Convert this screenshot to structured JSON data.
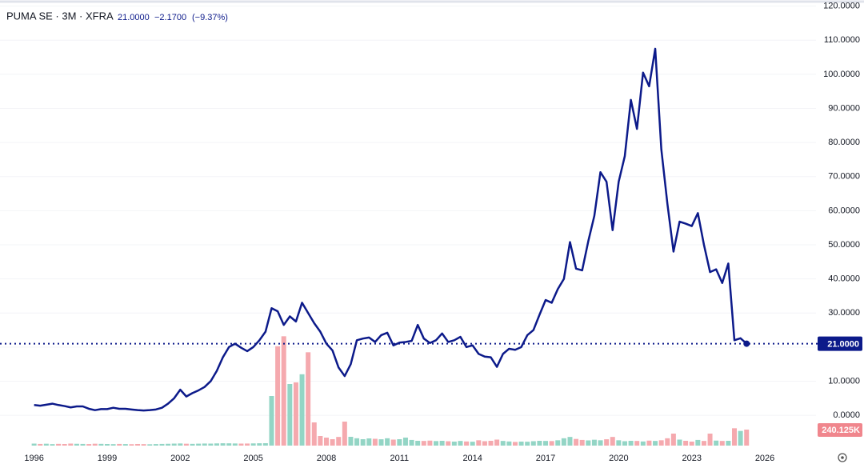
{
  "chart_data": {
    "type": "line",
    "title": "PUMA SE · 3M · XFRA",
    "header_values": [
      "21.0000",
      "−2.1700",
      "(−9.37%)"
    ],
    "x": [
      1996,
      1996.25,
      1996.5,
      1996.75,
      1997,
      1997.25,
      1997.5,
      1997.75,
      1998,
      1998.25,
      1998.5,
      1998.75,
      1999,
      1999.25,
      1999.5,
      1999.75,
      2000,
      2000.25,
      2000.5,
      2000.75,
      2001,
      2001.25,
      2001.5,
      2001.75,
      2002,
      2002.25,
      2002.5,
      2002.75,
      2003,
      2003.25,
      2003.5,
      2003.75,
      2004,
      2004.25,
      2004.5,
      2004.75,
      2005,
      2005.25,
      2005.5,
      2005.75,
      2006,
      2006.25,
      2006.5,
      2006.75,
      2007,
      2007.25,
      2007.5,
      2007.75,
      2008,
      2008.25,
      2008.5,
      2008.75,
      2009,
      2009.25,
      2009.5,
      2009.75,
      2010,
      2010.25,
      2010.5,
      2010.75,
      2011,
      2011.25,
      2011.5,
      2011.75,
      2012,
      2012.25,
      2012.5,
      2012.75,
      2013,
      2013.25,
      2013.5,
      2013.75,
      2014,
      2014.25,
      2014.5,
      2014.75,
      2015,
      2015.25,
      2015.5,
      2015.75,
      2016,
      2016.25,
      2016.5,
      2016.75,
      2017,
      2017.25,
      2017.5,
      2017.75,
      2018,
      2018.25,
      2018.5,
      2018.75,
      2019,
      2019.25,
      2019.5,
      2019.75,
      2020,
      2020.25,
      2020.5,
      2020.75,
      2021,
      2021.25,
      2021.5,
      2021.75,
      2022,
      2022.25,
      2022.5,
      2022.75,
      2023,
      2023.25,
      2023.5,
      2023.75,
      2024,
      2024.25,
      2024.5,
      2024.75,
      2025,
      2025.25
    ],
    "series": [
      {
        "name": "PUMA SE",
        "color": "#0c1a8a",
        "values": [
          3.0,
          2.8,
          3.1,
          3.4,
          3.0,
          2.7,
          2.3,
          2.6,
          2.6,
          1.9,
          1.5,
          1.8,
          1.8,
          2.2,
          1.9,
          1.9,
          1.7,
          1.5,
          1.4,
          1.5,
          1.7,
          2.2,
          3.4,
          5.0,
          7.5,
          5.5,
          6.5,
          7.3,
          8.3,
          10.0,
          13.0,
          17.0,
          20.0,
          21.0,
          19.8,
          18.8,
          20.0,
          22.0,
          24.5,
          31.4,
          30.5,
          26.5,
          29.0,
          27.5,
          33.0,
          30.0,
          27.0,
          24.5,
          21.0,
          19.0,
          14.0,
          11.5,
          15.0,
          22.0,
          22.5,
          22.8,
          21.5,
          23.5,
          24.2,
          20.5,
          21.3,
          21.5,
          21.8,
          26.5,
          22.5,
          21.2,
          22.0,
          24.0,
          21.5,
          22.0,
          23.0,
          20.0,
          20.5,
          18.0,
          17.2,
          17.0,
          14.2,
          18.0,
          19.5,
          19.2,
          20.0,
          23.5,
          25.0,
          29.5,
          33.8,
          33.0,
          37.0,
          40.0,
          50.8,
          43.0,
          42.5,
          51.0,
          58.5,
          71.3,
          68.5,
          54.3,
          68.5,
          76.0,
          92.5,
          84.0,
          100.5,
          96.5,
          107.5,
          78.0,
          62.0,
          48.0,
          56.8,
          56.2,
          55.5,
          59.3,
          50.0,
          42.0,
          42.8,
          38.8,
          44.5,
          22.0,
          22.6,
          21.0
        ]
      },
      {
        "name": "Volume",
        "axis": "y2",
        "up_color": "#93d5c5",
        "down_color": "#f5a9ae",
        "values": [
          30000,
          25000,
          28000,
          22000,
          26000,
          24000,
          30000,
          27000,
          25000,
          23000,
          28000,
          26000,
          24000,
          22000,
          25000,
          23000,
          21000,
          24000,
          22000,
          20000,
          23000,
          25000,
          27000,
          30000,
          32000,
          28000,
          26000,
          29000,
          31000,
          30000,
          33000,
          35000,
          34000,
          32000,
          30000,
          31000,
          33000,
          35000,
          36000,
          744000,
          1490000,
          1640000,
          924000,
          948000,
          1070000,
          1400000,
          348000,
          144000,
          120000,
          96000,
          130000,
          360000,
          132000,
          110000,
          96000,
          108000,
          102000,
          95000,
          110000,
          90000,
          96000,
          120000,
          85000,
          72000,
          70000,
          75000,
          68000,
          72000,
          65000,
          60000,
          70000,
          62000,
          58000,
          80000,
          66000,
          72000,
          90000,
          70000,
          62000,
          55000,
          60000,
          58000,
          66000,
          72000,
          70000,
          68000,
          80000,
          110000,
          130000,
          100000,
          85000,
          78000,
          88000,
          80000,
          95000,
          130000,
          80000,
          66000,
          72000,
          70000,
          62000,
          75000,
          70000,
          80000,
          110000,
          180000,
          90000,
          72000,
          60000,
          85000,
          70000,
          180000,
          75000,
          70000,
          72000,
          260000,
          220000,
          240125
        ],
        "last_value_label": "240.125K"
      }
    ],
    "last_value_label": "21.0000",
    "xlim": [
      1994.6,
      2028.1
    ],
    "xticks": [
      1996,
      1999,
      2002,
      2005,
      2008,
      2011,
      2014,
      2017,
      2020,
      2023,
      2026
    ],
    "ylim": [
      -8.9,
      121.8
    ],
    "yticks": [
      {
        "value": 0,
        "label": "0.0000"
      },
      {
        "value": 10,
        "label": "10.0000"
      },
      {
        "value": 20,
        "label": "20.0000"
      },
      {
        "value": 30,
        "label": "30.0000"
      },
      {
        "value": 40,
        "label": "40.0000"
      },
      {
        "value": 50,
        "label": "50.0000"
      },
      {
        "value": 60,
        "label": "60.0000"
      },
      {
        "value": 70,
        "label": "70.0000"
      },
      {
        "value": 80,
        "label": "80.0000"
      },
      {
        "value": 90,
        "label": "90.0000"
      },
      {
        "value": 100,
        "label": "100.0000"
      },
      {
        "value": 110,
        "label": "110.0000"
      },
      {
        "value": 120,
        "label": "120.0000"
      }
    ],
    "y2lim": [
      0,
      6684000
    ],
    "grid": true
  }
}
